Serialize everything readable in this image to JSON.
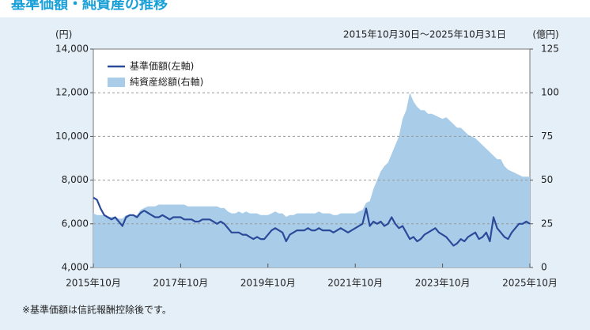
{
  "chart_data": {
    "type": "line-area",
    "title": "基準価額・純資産の推移",
    "date_range": "2015年10月30日～2025年10月31日",
    "y_label": "(円)",
    "y2_label": "(億円)",
    "footnote": "※基準価額は信託報酬控除後です。",
    "x": [
      "2015-10",
      "2015-11",
      "2015-12",
      "2016-01",
      "2016-02",
      "2016-03",
      "2016-04",
      "2016-05",
      "2016-06",
      "2016-07",
      "2016-08",
      "2016-09",
      "2016-10",
      "2016-11",
      "2016-12",
      "2017-01",
      "2017-02",
      "2017-03",
      "2017-04",
      "2017-05",
      "2017-06",
      "2017-07",
      "2017-08",
      "2017-09",
      "2017-10",
      "2017-11",
      "2017-12",
      "2018-01",
      "2018-02",
      "2018-03",
      "2018-04",
      "2018-05",
      "2018-06",
      "2018-07",
      "2018-08",
      "2018-09",
      "2018-10",
      "2018-11",
      "2018-12",
      "2019-01",
      "2019-02",
      "2019-03",
      "2019-04",
      "2019-05",
      "2019-06",
      "2019-07",
      "2019-08",
      "2019-09",
      "2019-10",
      "2019-11",
      "2019-12",
      "2020-01",
      "2020-02",
      "2020-03",
      "2020-04",
      "2020-05",
      "2020-06",
      "2020-07",
      "2020-08",
      "2020-09",
      "2020-10",
      "2020-11",
      "2020-12",
      "2021-01",
      "2021-02",
      "2021-03",
      "2021-04",
      "2021-05",
      "2021-06",
      "2021-07",
      "2021-08",
      "2021-09",
      "2021-10",
      "2021-11",
      "2021-12",
      "2022-01",
      "2022-02",
      "2022-03",
      "2022-04",
      "2022-05",
      "2022-06",
      "2022-07",
      "2022-08",
      "2022-09",
      "2022-10",
      "2022-11",
      "2022-12",
      "2023-01",
      "2023-02",
      "2023-03",
      "2023-04",
      "2023-05",
      "2023-06",
      "2023-07",
      "2023-08",
      "2023-09",
      "2023-10",
      "2023-11",
      "2023-12",
      "2024-01",
      "2024-02",
      "2024-03",
      "2024-04",
      "2024-05",
      "2024-06",
      "2024-07",
      "2024-08",
      "2024-09",
      "2024-10",
      "2024-11",
      "2024-12",
      "2025-01",
      "2025-02",
      "2025-03",
      "2025-04",
      "2025-05",
      "2025-06",
      "2025-07",
      "2025-08",
      "2025-09",
      "2025-10"
    ],
    "series": [
      {
        "name": "純資産総額(右軸)",
        "color": "#a9cde9",
        "axis": "y2",
        "kind": "area",
        "values": [
          31,
          30,
          30,
          30,
          29,
          29,
          29,
          28,
          28,
          30,
          30,
          30,
          30,
          33,
          34,
          35,
          35,
          35,
          36,
          36,
          36,
          36,
          36,
          36,
          36,
          36,
          35,
          35,
          35,
          35,
          35,
          35,
          35,
          35,
          35,
          34,
          34,
          32,
          31,
          31,
          32,
          31,
          32,
          31,
          31,
          31,
          30,
          30,
          30,
          31,
          32,
          31,
          31,
          29,
          30,
          30,
          31,
          31,
          31,
          31,
          31,
          31,
          32,
          31,
          31,
          31,
          30,
          30,
          31,
          31,
          31,
          31,
          31,
          32,
          33,
          37,
          38,
          45,
          50,
          55,
          58,
          60,
          65,
          70,
          75,
          85,
          90,
          100,
          95,
          92,
          90,
          90,
          88,
          88,
          87,
          86,
          85,
          86,
          84,
          82,
          80,
          80,
          78,
          76,
          75,
          74,
          72,
          70,
          68,
          66,
          64,
          62,
          62,
          58,
          56,
          55,
          54,
          53,
          52,
          52,
          52
        ]
      },
      {
        "name": "基準価額(左軸)",
        "color": "#2b4a9a",
        "kind": "line",
        "values": [
          7200,
          7100,
          6700,
          6400,
          6300,
          6200,
          6300,
          6100,
          5900,
          6300,
          6400,
          6400,
          6300,
          6500,
          6600,
          6500,
          6400,
          6300,
          6300,
          6400,
          6300,
          6200,
          6300,
          6300,
          6300,
          6200,
          6200,
          6200,
          6100,
          6100,
          6200,
          6200,
          6200,
          6100,
          6000,
          6100,
          6000,
          5800,
          5600,
          5600,
          5600,
          5500,
          5500,
          5400,
          5300,
          5400,
          5300,
          5300,
          5500,
          5700,
          5800,
          5700,
          5600,
          5200,
          5500,
          5600,
          5700,
          5700,
          5700,
          5800,
          5700,
          5700,
          5800,
          5700,
          5700,
          5700,
          5600,
          5700,
          5800,
          5700,
          5600,
          5700,
          5800,
          5900,
          6000,
          6700,
          5900,
          6100,
          6000,
          6100,
          5900,
          6000,
          6300,
          6000,
          5800,
          5900,
          5600,
          5300,
          5400,
          5200,
          5300,
          5500,
          5600,
          5700,
          5800,
          5600,
          5500,
          5400,
          5200,
          5000,
          5100,
          5300,
          5200,
          5400,
          5500,
          5600,
          5300,
          5400,
          5600,
          5200,
          6300,
          5800,
          5600,
          5400,
          5300,
          5600,
          5800,
          6000,
          6000,
          6100,
          6000
        ]
      }
    ],
    "xlim": [
      "2015-10",
      "2025-10"
    ],
    "xticks": [
      {
        "value": "2015-10",
        "label": "2015年10月"
      },
      {
        "value": "2017-10",
        "label": "2017年10月"
      },
      {
        "value": "2019-10",
        "label": "2019年10月"
      },
      {
        "value": "2021-10",
        "label": "2021年10月"
      },
      {
        "value": "2023-10",
        "label": "2023年10月"
      },
      {
        "value": "2025-10",
        "label": "2025年10月"
      }
    ],
    "ylim": [
      4000,
      14000
    ],
    "yticks": [
      {
        "value": 4000,
        "label": "4,000"
      },
      {
        "value": 6000,
        "label": "6,000"
      },
      {
        "value": 8000,
        "label": "8,000"
      },
      {
        "value": 10000,
        "label": "10,000"
      },
      {
        "value": 12000,
        "label": "12,000"
      },
      {
        "value": 14000,
        "label": "14,000"
      }
    ],
    "y2lim": [
      0,
      125
    ],
    "y2ticks": [
      0,
      25,
      50,
      75,
      100,
      125
    ],
    "grid": true,
    "legend": "top-left"
  }
}
